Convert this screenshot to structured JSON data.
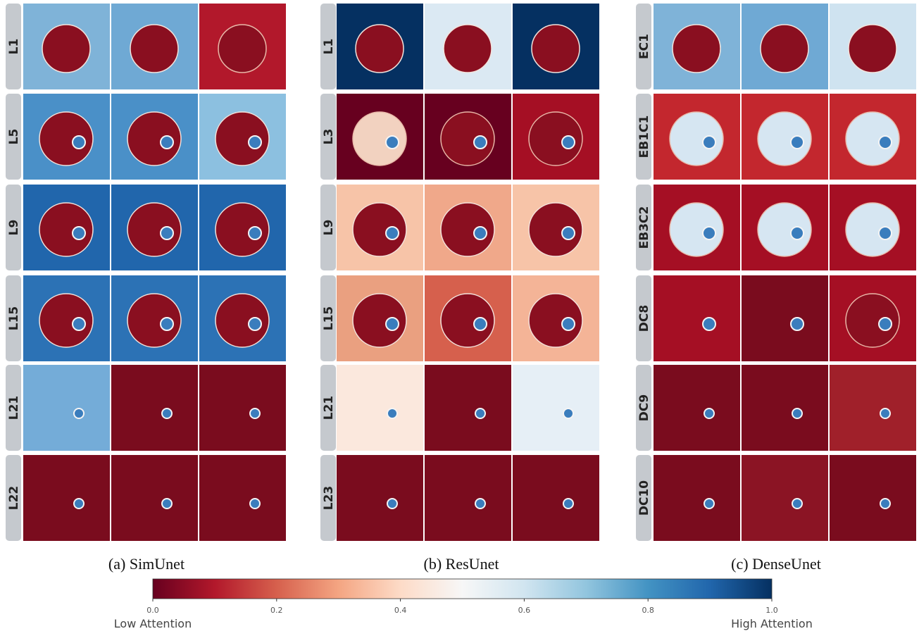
{
  "panels": [
    {
      "caption": "(a) SimUnet",
      "rows": [
        "L1",
        "L5",
        "L9",
        "L15",
        "L21",
        "L22"
      ]
    },
    {
      "caption": "(b) ResUnet",
      "rows": [
        "L1",
        "L3",
        "L9",
        "L15",
        "L21",
        "L23"
      ]
    },
    {
      "caption": "(c) DenseUnet",
      "rows": [
        "EC1",
        "EB1C1",
        "EB3C2",
        "DC8",
        "DC9",
        "DC10"
      ]
    }
  ],
  "colorbar": {
    "lim": [
      0,
      1
    ],
    "ticks": [
      {
        "value": 0,
        "label": "0.0"
      },
      {
        "value": 0.2,
        "label": "0.2"
      },
      {
        "value": 0.4,
        "label": "0.4"
      },
      {
        "value": 0.6,
        "label": "0.6"
      },
      {
        "value": 0.8,
        "label": "0.8"
      },
      {
        "value": 1,
        "label": "1.0"
      }
    ],
    "low_label": "Low Attention",
    "high_label": "High Attention"
  }
}
